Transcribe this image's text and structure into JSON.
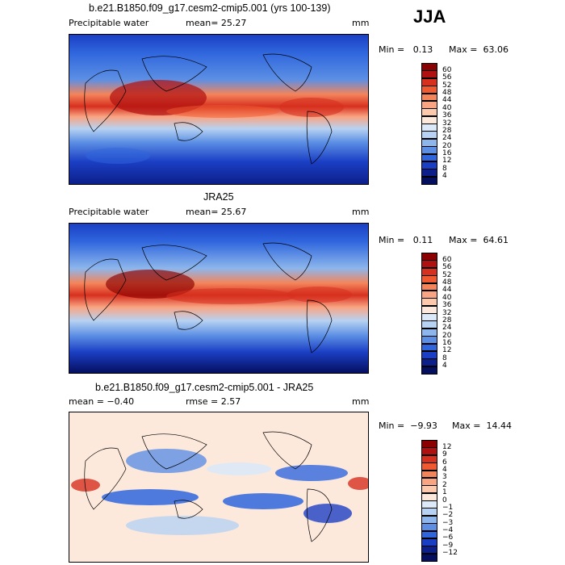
{
  "season": "JJA",
  "panels": [
    {
      "title": "b.e21.B1850.f09_g17.cesm2-cmip5.001 (yrs 100-139)",
      "left_label": "Precipitable water",
      "center_label": "mean=  25.27",
      "units": "mm",
      "min_text": "Min =   0.13",
      "max_text": "Max =  63.06",
      "colorbar": {
        "levels": [
          "60",
          "56",
          "52",
          "48",
          "44",
          "40",
          "36",
          "32",
          "28",
          "24",
          "20",
          "16",
          "12",
          "8",
          "4"
        ],
        "colors": [
          "#8b0000",
          "#b01010",
          "#d7301f",
          "#ef5a30",
          "#f4845a",
          "#f9a583",
          "#fcc9ad",
          "#fde9dc",
          "#dce9f8",
          "#b7d2f2",
          "#8db6ec",
          "#5c8fe4",
          "#2f66dd",
          "#1b3fc4",
          "#0c1f8a",
          "#050f60"
        ]
      }
    },
    {
      "title": "JRA25",
      "left_label": "Precipitable water",
      "center_label": "mean=  25.67",
      "units": "mm",
      "min_text": "Min =   0.11",
      "max_text": "Max =  64.61",
      "colorbar": {
        "levels": [
          "60",
          "56",
          "52",
          "48",
          "44",
          "40",
          "36",
          "32",
          "28",
          "24",
          "20",
          "16",
          "12",
          "8",
          "4"
        ],
        "colors": [
          "#8b0000",
          "#b01010",
          "#d7301f",
          "#ef5a30",
          "#f4845a",
          "#f9a583",
          "#fcc9ad",
          "#fde9dc",
          "#dce9f8",
          "#b7d2f2",
          "#8db6ec",
          "#5c8fe4",
          "#2f66dd",
          "#1b3fc4",
          "#0c1f8a",
          "#050f60"
        ]
      }
    },
    {
      "title": "b.e21.B1850.f09_g17.cesm2-cmip5.001 - JRA25",
      "left_label": "mean =  −0.40",
      "center_label": "rmse =   2.57",
      "units": "mm",
      "min_text": "Min =  −9.93",
      "max_text": "Max =  14.44",
      "colorbar": {
        "levels": [
          "12",
          "9",
          "6",
          "4",
          "3",
          "2",
          "1",
          "0",
          "−1",
          "−2",
          "−3",
          "−4",
          "−6",
          "−9",
          "−12"
        ],
        "colors": [
          "#8b0000",
          "#b01010",
          "#d7301f",
          "#ef5a30",
          "#f4845a",
          "#f9a583",
          "#fcc9ad",
          "#fde9dc",
          "#dce9f8",
          "#b7d2f2",
          "#8db6ec",
          "#5c8fe4",
          "#2f66dd",
          "#1b3fc4",
          "#0c1f8a",
          "#050f60"
        ]
      }
    }
  ]
}
